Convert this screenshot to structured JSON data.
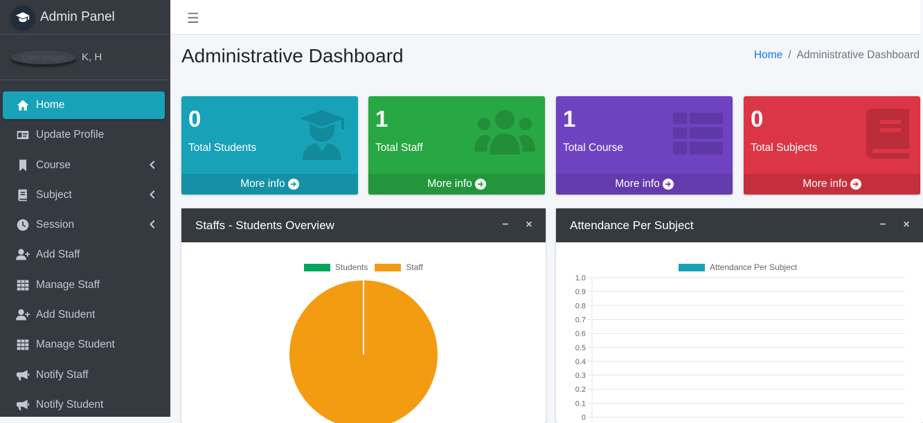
{
  "brand": {
    "title": "Admin Panel"
  },
  "user": {
    "image_alt": "User Image",
    "name": "K, H"
  },
  "sidebar": {
    "items": [
      {
        "label": "Home",
        "icon": "home-icon",
        "active": true
      },
      {
        "label": "Update Profile",
        "icon": "id-card-icon"
      },
      {
        "label": "Course",
        "icon": "bookmark-icon",
        "submenu": true
      },
      {
        "label": "Subject",
        "icon": "book-icon",
        "submenu": true
      },
      {
        "label": "Session",
        "icon": "clock-icon",
        "submenu": true
      },
      {
        "label": "Add Staff",
        "icon": "user-plus-icon"
      },
      {
        "label": "Manage Staff",
        "icon": "grid-icon"
      },
      {
        "label": "Add Student",
        "icon": "user-plus-icon"
      },
      {
        "label": "Manage Student",
        "icon": "grid-icon"
      },
      {
        "label": "Notify Staff",
        "icon": "megaphone-icon"
      },
      {
        "label": "Notify Student",
        "icon": "megaphone-icon"
      }
    ]
  },
  "header": {
    "title": "Administrative Dashboard",
    "breadcrumb": {
      "home": "Home",
      "separator": "/",
      "current": "Administrative Dashboard"
    }
  },
  "stats": [
    {
      "value": "0",
      "label": "Total Students",
      "more": "More info",
      "color": "#17a2b8",
      "icon": "graduate-icon"
    },
    {
      "value": "1",
      "label": "Total Staff",
      "more": "More info",
      "color": "#28a745",
      "icon": "users-icon"
    },
    {
      "value": "1",
      "label": "Total Course",
      "more": "More info",
      "color": "#6f42c1",
      "icon": "table-list-icon"
    },
    {
      "value": "0",
      "label": "Total Subjects",
      "more": "More info",
      "color": "#dc3545",
      "icon": "book-icon"
    }
  ],
  "cards": {
    "overview": {
      "title": "Staffs - Students Overview",
      "minimize": "−",
      "close": "×"
    },
    "attendance": {
      "title": "Attendance Per Subject",
      "minimize": "−",
      "close": "×"
    }
  },
  "chart_data": [
    {
      "type": "pie",
      "labels": [
        "Students",
        "Staff"
      ],
      "values": [
        0,
        1
      ],
      "colors": [
        "#00a65a",
        "#f39c12"
      ]
    },
    {
      "type": "bar",
      "series": [
        {
          "name": "Attendance Per Subject",
          "values": []
        }
      ],
      "categories": [],
      "colors": [
        "#17a2b8"
      ],
      "ylim": [
        0,
        1.0
      ],
      "yticks": [
        "1.0",
        "0.9",
        "0.8",
        "0.7",
        "0.6",
        "0.5",
        "0.4",
        "0.3",
        "0.2",
        "0.1",
        "0"
      ]
    }
  ]
}
